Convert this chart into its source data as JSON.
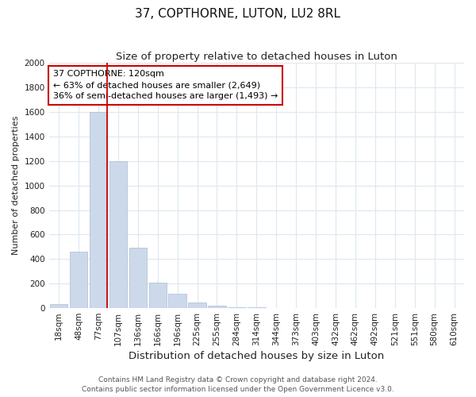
{
  "title": "37, COPTHORNE, LUTON, LU2 8RL",
  "subtitle": "Size of property relative to detached houses in Luton",
  "xlabel": "Distribution of detached houses by size in Luton",
  "ylabel": "Number of detached properties",
  "bar_labels": [
    "18sqm",
    "48sqm",
    "77sqm",
    "107sqm",
    "136sqm",
    "166sqm",
    "196sqm",
    "225sqm",
    "255sqm",
    "284sqm",
    "314sqm",
    "344sqm",
    "373sqm",
    "403sqm",
    "432sqm",
    "462sqm",
    "492sqm",
    "521sqm",
    "551sqm",
    "580sqm",
    "610sqm"
  ],
  "bar_values": [
    35,
    460,
    1600,
    1200,
    490,
    210,
    120,
    45,
    20,
    10,
    5,
    0,
    0,
    0,
    0,
    0,
    0,
    0,
    0,
    0,
    0
  ],
  "bar_color": "#ccd9ea",
  "bar_edge_color": "#aabdd4",
  "property_line_color": "#cc0000",
  "property_line_bar_index": 2,
  "annotation_title": "37 COPTHORNE: 120sqm",
  "annotation_line1": "← 63% of detached houses are smaller (2,649)",
  "annotation_line2": "36% of semi-detached houses are larger (1,493) →",
  "annotation_box_color": "#ffffff",
  "annotation_box_edge": "#cc0000",
  "ylim": [
    0,
    2000
  ],
  "yticks": [
    0,
    200,
    400,
    600,
    800,
    1000,
    1200,
    1400,
    1600,
    1800,
    2000
  ],
  "footer1": "Contains HM Land Registry data © Crown copyright and database right 2024.",
  "footer2": "Contains public sector information licensed under the Open Government Licence v3.0.",
  "background_color": "#ffffff",
  "grid_color": "#dce8f0",
  "title_fontsize": 11,
  "subtitle_fontsize": 9.5,
  "xlabel_fontsize": 9.5,
  "ylabel_fontsize": 8,
  "tick_fontsize": 7.5,
  "footer_fontsize": 6.5,
  "ann_fontsize": 8
}
